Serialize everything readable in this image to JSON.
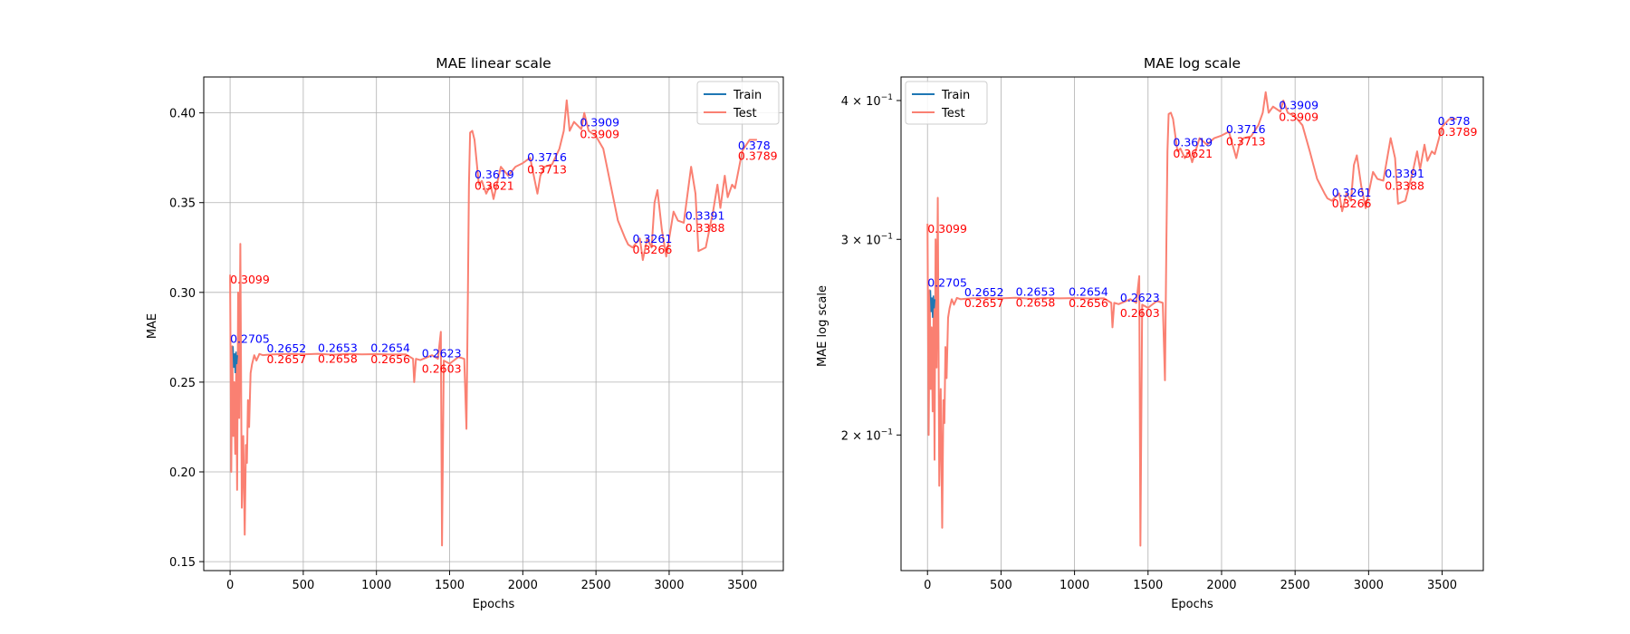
{
  "colors": {
    "train": "#1f77b4",
    "test": "#fa8072",
    "train_label": "#0000ff",
    "test_label": "#ff0000",
    "grid": "#b0b0b0"
  },
  "chart_data": [
    {
      "type": "line",
      "title": "MAE linear scale",
      "xlabel": "Epochs",
      "ylabel": "MAE",
      "yscale": "linear",
      "xlim": [
        -180,
        3780
      ],
      "ylim": [
        0.145,
        0.42
      ],
      "xticks": [
        0,
        500,
        1000,
        1500,
        2000,
        2500,
        3000,
        3500
      ],
      "xtick_labels": [
        "0",
        "500",
        "1000",
        "1500",
        "2000",
        "2500",
        "3000",
        "3500"
      ],
      "yticks": [
        0.15,
        0.2,
        0.25,
        0.3,
        0.35,
        0.4
      ],
      "ytick_labels": [
        "0.15",
        "0.20",
        "0.25",
        "0.30",
        "0.35",
        "0.40"
      ],
      "grid": true,
      "legend": {
        "position": "upper right",
        "entries": [
          "Train",
          "Test"
        ]
      },
      "series": [
        {
          "name": "Train",
          "x": [
            20,
            25,
            30,
            35,
            40,
            45,
            50
          ],
          "y": [
            0.27,
            0.258,
            0.266,
            0.255,
            0.267,
            0.26,
            0.265
          ]
        },
        {
          "name": "Test",
          "x": [
            0,
            8,
            15,
            22,
            28,
            35,
            42,
            48,
            55,
            62,
            70,
            80,
            90,
            100,
            108,
            115,
            122,
            130,
            140,
            150,
            165,
            180,
            200,
            225,
            250,
            300,
            400,
            500,
            600,
            700,
            800,
            900,
            1000,
            1100,
            1200,
            1250,
            1258,
            1270,
            1300,
            1380,
            1420,
            1440,
            1448,
            1460,
            1500,
            1560,
            1600,
            1615,
            1625,
            1632,
            1640,
            1655,
            1670,
            1700,
            1720,
            1750,
            1780,
            1800,
            1850,
            1900,
            1950,
            2000,
            2050,
            2100,
            2120,
            2150,
            2200,
            2250,
            2280,
            2300,
            2320,
            2350,
            2400,
            2420,
            2450,
            2500,
            2550,
            2600,
            2650,
            2700,
            2720,
            2750,
            2800,
            2820,
            2850,
            2880,
            2900,
            2920,
            2950,
            2980,
            3000,
            3030,
            3060,
            3100,
            3150,
            3180,
            3200,
            3250,
            3300,
            3330,
            3350,
            3380,
            3400,
            3430,
            3450,
            3500,
            3550,
            3600
          ],
          "y": [
            0.3099,
            0.2,
            0.27,
            0.22,
            0.25,
            0.21,
            0.26,
            0.19,
            0.3,
            0.23,
            0.327,
            0.18,
            0.22,
            0.165,
            0.215,
            0.205,
            0.24,
            0.225,
            0.255,
            0.26,
            0.265,
            0.262,
            0.2657,
            0.265,
            0.2652,
            0.2655,
            0.2657,
            0.2655,
            0.2658,
            0.2653,
            0.2657,
            0.2655,
            0.2656,
            0.2654,
            0.2655,
            0.263,
            0.25,
            0.263,
            0.2623,
            0.265,
            0.263,
            0.278,
            0.159,
            0.262,
            0.2603,
            0.264,
            0.263,
            0.224,
            0.3,
            0.36,
            0.389,
            0.39,
            0.385,
            0.36,
            0.3621,
            0.355,
            0.36,
            0.352,
            0.37,
            0.365,
            0.37,
            0.372,
            0.375,
            0.355,
            0.365,
            0.37,
            0.3713,
            0.38,
            0.39,
            0.407,
            0.39,
            0.395,
            0.3909,
            0.4,
            0.39,
            0.387,
            0.38,
            0.36,
            0.34,
            0.33,
            0.3266,
            0.325,
            0.33,
            0.318,
            0.33,
            0.325,
            0.35,
            0.357,
            0.335,
            0.32,
            0.33,
            0.345,
            0.34,
            0.3388,
            0.37,
            0.355,
            0.323,
            0.325,
            0.345,
            0.36,
            0.347,
            0.365,
            0.353,
            0.36,
            0.358,
            0.3789,
            0.385,
            0.385
          ]
        }
      ],
      "annotations": [
        {
          "x": 0,
          "y": 0.2705,
          "text": "0.2705",
          "series": "Train"
        },
        {
          "x": 0,
          "y": 0.3099,
          "text": "0.3099",
          "series": "Test"
        },
        {
          "x": 250,
          "y": 0.2652,
          "text": "0.2652",
          "series": "Train"
        },
        {
          "x": 250,
          "y": 0.2657,
          "text": "0.2657",
          "series": "Test"
        },
        {
          "x": 600,
          "y": 0.2653,
          "text": "0.2653",
          "series": "Train"
        },
        {
          "x": 600,
          "y": 0.2658,
          "text": "0.2658",
          "series": "Test"
        },
        {
          "x": 960,
          "y": 0.2654,
          "text": "0.2654",
          "series": "Train"
        },
        {
          "x": 960,
          "y": 0.2656,
          "text": "0.2656",
          "series": "Test"
        },
        {
          "x": 1310,
          "y": 0.2623,
          "text": "0.2623",
          "series": "Train"
        },
        {
          "x": 1310,
          "y": 0.2603,
          "text": "0.2603",
          "series": "Test"
        },
        {
          "x": 1670,
          "y": 0.3619,
          "text": "0.3619",
          "series": "Train"
        },
        {
          "x": 1670,
          "y": 0.3621,
          "text": "0.3621",
          "series": "Test"
        },
        {
          "x": 2030,
          "y": 0.3716,
          "text": "0.3716",
          "series": "Train"
        },
        {
          "x": 2030,
          "y": 0.3713,
          "text": "0.3713",
          "series": "Test"
        },
        {
          "x": 2390,
          "y": 0.3909,
          "text": "0.3909",
          "series": "Train"
        },
        {
          "x": 2390,
          "y": 0.3909,
          "text": "0.3909",
          "series": "Test"
        },
        {
          "x": 2750,
          "y": 0.3261,
          "text": "0.3261",
          "series": "Train"
        },
        {
          "x": 2750,
          "y": 0.3266,
          "text": "0.3266",
          "series": "Test"
        },
        {
          "x": 3110,
          "y": 0.3391,
          "text": "0.3391",
          "series": "Train"
        },
        {
          "x": 3110,
          "y": 0.3388,
          "text": "0.3388",
          "series": "Test"
        },
        {
          "x": 3470,
          "y": 0.378,
          "text": "0.378",
          "series": "Train"
        },
        {
          "x": 3470,
          "y": 0.3789,
          "text": "0.3789",
          "series": "Test"
        }
      ]
    },
    {
      "type": "line",
      "title": "MAE log scale",
      "xlabel": "Epochs",
      "ylabel": "MAE log scale",
      "yscale": "log",
      "xlim": [
        -180,
        3780
      ],
      "ylim": [
        0.151,
        0.42
      ],
      "xticks": [
        0,
        500,
        1000,
        1500,
        2000,
        2500,
        3000,
        3500
      ],
      "xtick_labels": [
        "0",
        "500",
        "1000",
        "1500",
        "2000",
        "2500",
        "3000",
        "3500"
      ],
      "yticks": [
        0.2,
        0.3,
        0.4
      ],
      "ytick_labels": [
        {
          "base": "2 × 10",
          "exp": "−1"
        },
        {
          "base": "3 × 10",
          "exp": "−1"
        },
        {
          "base": "4 × 10",
          "exp": "−1"
        }
      ],
      "grid": true,
      "legend": {
        "position": "upper left",
        "entries": [
          "Train",
          "Test"
        ]
      },
      "series_ref": "same data as linear-scale chart"
    }
  ]
}
